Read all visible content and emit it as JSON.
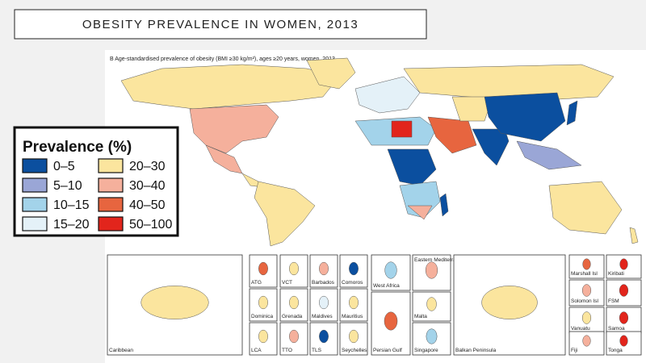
{
  "header": {
    "title": "OBESITY PREVALENCE IN WOMEN, 2013"
  },
  "map": {
    "subtitle": "B  Age-standardised prevalence of obesity (BMI ≥30 kg/m²), ages ≥20 years, women, 2013"
  },
  "legend": {
    "title": "Prevalence (%)",
    "items": [
      {
        "label": "0–5",
        "color": "#0b4f9f"
      },
      {
        "label": "5–10",
        "color": "#9aa6d6"
      },
      {
        "label": "10–15",
        "color": "#a3d3ea"
      },
      {
        "label": "15–20",
        "color": "#e4f1f8"
      },
      {
        "label": "20–30",
        "color": "#fbe59e"
      },
      {
        "label": "30–40",
        "color": "#f5b09c"
      },
      {
        "label": "40–50",
        "color": "#e7653f"
      },
      {
        "label": "50–100",
        "color": "#e2251c"
      }
    ]
  },
  "insets": [
    "Caribbean",
    "ATG",
    "VCT",
    "Barbados",
    "Comoros",
    "Dominica",
    "Grenada",
    "Maldives",
    "Mauritius",
    "LCA",
    "TTO",
    "TLS",
    "Seychelles",
    "West Africa",
    "Eastern Mediterranean",
    "Persian Gulf",
    "Malta",
    "Singapore",
    "Balkan Peninsula",
    "Marshall Isl",
    "Kiribati",
    "Solomon Isl",
    "FSM",
    "Vanuatu",
    "Samoa",
    "Fiji",
    "Tonga"
  ]
}
